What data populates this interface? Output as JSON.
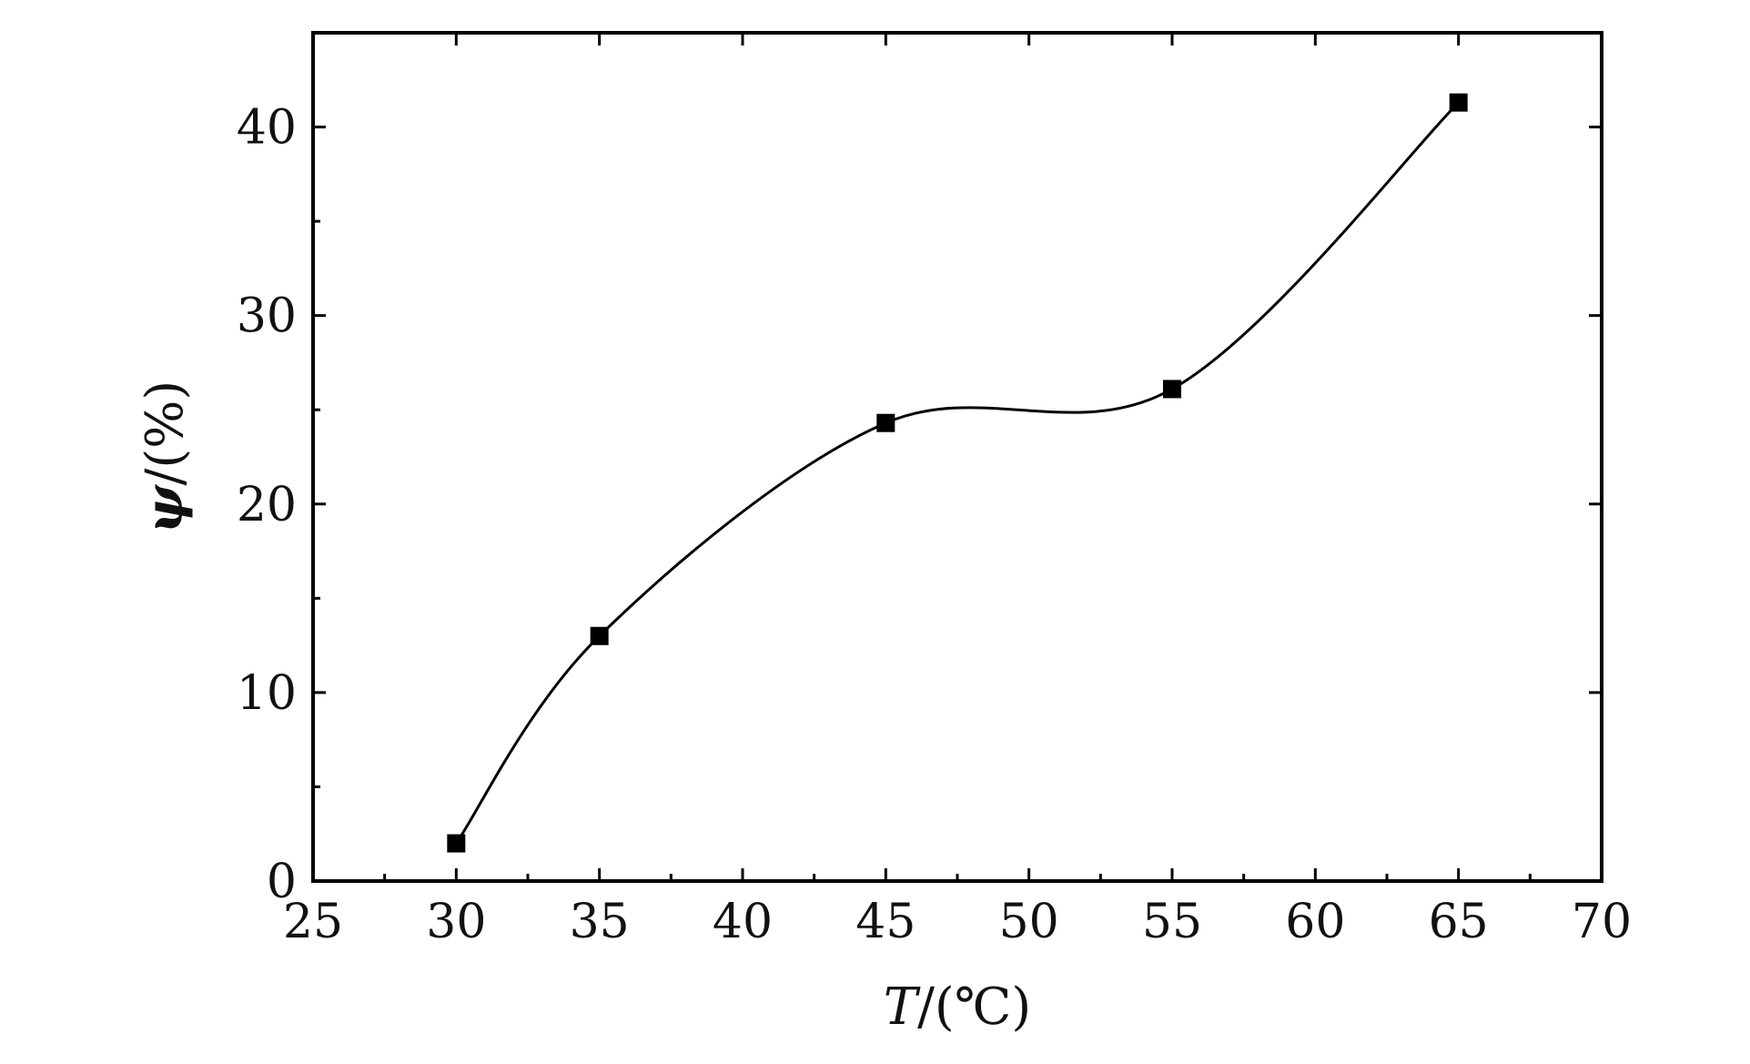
{
  "chart_data": {
    "type": "scatter",
    "title": "",
    "xlabel_symbol": "T",
    "xlabel_unit": "/(℃)",
    "ylabel_symbol": "ψ",
    "ylabel_unit": "/(%)",
    "xlim": [
      25,
      70
    ],
    "ylim": [
      0,
      45
    ],
    "xticks": [
      25,
      30,
      35,
      40,
      45,
      50,
      55,
      60,
      65,
      70
    ],
    "yticks": [
      0,
      10,
      20,
      30,
      40
    ],
    "grid": false,
    "legend": "none",
    "smooth_curve": true,
    "series": [
      {
        "x": [
          30,
          35,
          45,
          55,
          65
        ],
        "y": [
          2.0,
          13.0,
          24.3,
          26.1,
          41.3
        ]
      }
    ],
    "colors": {
      "marker": "#000000",
      "line": "#000000",
      "axes": "#000000"
    }
  }
}
